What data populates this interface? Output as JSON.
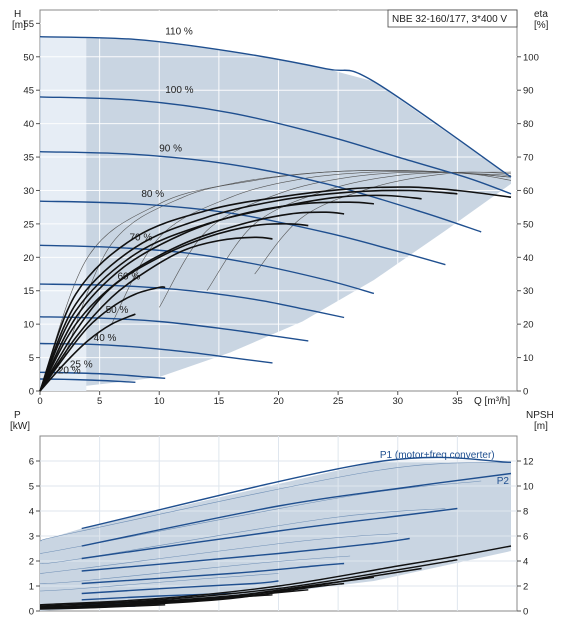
{
  "chart_data": [
    {
      "id": "head",
      "type": "line",
      "title": "NBE 32-160/177, 3*400 V",
      "xlabel": "Q [m³/h]",
      "ylabel_left": [
        "H",
        "[m]"
      ],
      "ylabel_right": [
        "eta",
        "[%]"
      ],
      "xlim": [
        0,
        40
      ],
      "ylim": [
        0,
        57
      ],
      "ylim_right": [
        0,
        114
      ],
      "x_ticks": [
        0,
        5,
        10,
        15,
        20,
        25,
        30,
        35
      ],
      "y_ticks": [
        0,
        5,
        10,
        15,
        20,
        25,
        30,
        35,
        40,
        45,
        50,
        55
      ],
      "y_right_ticks": [
        0,
        10,
        20,
        30,
        40,
        50,
        60,
        70,
        80,
        90,
        100
      ],
      "grid": true,
      "colors": {
        "area": "#c9d5e2",
        "curve": "#1f4f8f",
        "efficiency": "#111111",
        "grid": "#ffffff"
      },
      "envelope_polygon": [
        [
          0,
          0
        ],
        [
          0,
          53
        ],
        [
          8,
          52.6
        ],
        [
          16,
          50.8
        ],
        [
          24,
          48.2
        ],
        [
          28,
          46.3
        ],
        [
          39.5,
          32
        ],
        [
          39.5,
          31
        ],
        [
          34,
          24
        ],
        [
          28,
          16.6
        ],
        [
          22,
          10.4
        ],
        [
          16,
          5.8
        ],
        [
          10,
          2.1
        ],
        [
          7.5,
          1.5
        ]
      ],
      "speed_curves": [
        {
          "label": "110 %",
          "label_pos": [
            10.5,
            53.3
          ],
          "x": [
            0,
            8,
            16,
            24,
            28,
            39.5
          ],
          "y": [
            53,
            52.6,
            50.8,
            48.2,
            46.3,
            32
          ]
        },
        {
          "label": "100 %",
          "label_pos": [
            10.5,
            44.6
          ],
          "x": [
            0,
            8,
            16,
            24,
            30,
            36,
            39.5
          ],
          "y": [
            44,
            43.5,
            41.6,
            38.2,
            35.0,
            31.8,
            29.5
          ]
        },
        {
          "label": "90 %",
          "label_pos": [
            10,
            35.8
          ],
          "x": [
            0,
            8,
            16,
            24,
            32,
            37
          ],
          "y": [
            35.8,
            35.4,
            33.9,
            31.0,
            26.8,
            23.8
          ]
        },
        {
          "label": "80 %",
          "label_pos": [
            8.5,
            29.0
          ],
          "x": [
            0,
            8,
            16,
            24,
            30,
            34
          ],
          "y": [
            28.4,
            28.0,
            26.6,
            23.7,
            20.9,
            18.9
          ]
        },
        {
          "label": "70 %",
          "label_pos": [
            7.5,
            22.5
          ],
          "x": [
            0,
            6,
            12,
            18,
            24,
            28
          ],
          "y": [
            21.8,
            21.5,
            20.7,
            19.0,
            16.6,
            14.6
          ]
        },
        {
          "label": "60 %",
          "label_pos": [
            6.5,
            16.7
          ],
          "x": [
            0,
            6,
            12,
            18,
            22,
            25.5
          ],
          "y": [
            16.0,
            15.8,
            15.1,
            13.7,
            12.3,
            11.0
          ]
        },
        {
          "label": "50 %",
          "label_pos": [
            5.5,
            11.7
          ],
          "x": [
            0,
            5,
            10,
            15,
            19,
            22.5
          ],
          "y": [
            11.1,
            10.9,
            10.4,
            9.4,
            8.4,
            7.5
          ]
        },
        {
          "label": "40 %",
          "label_pos": [
            4.5,
            7.5
          ],
          "x": [
            0,
            4,
            8,
            12,
            16,
            19.5
          ],
          "y": [
            7.1,
            7.0,
            6.6,
            5.9,
            5.0,
            4.2
          ]
        },
        {
          "label": "25 %",
          "label_pos": [
            2.5,
            3.5
          ],
          "x": [
            0,
            3,
            6,
            9,
            10.5
          ],
          "y": [
            2.8,
            2.7,
            2.5,
            2.1,
            1.9
          ]
        },
        {
          "label": "20 %",
          "label_pos": [
            1.5,
            2.6
          ],
          "x": [
            0,
            2,
            4,
            6,
            8
          ],
          "y": [
            1.8,
            1.75,
            1.65,
            1.5,
            1.3
          ]
        }
      ],
      "efficiency_curves": [
        {
          "x": [
            0,
            3,
            8,
            14,
            20,
            26,
            31,
            35,
            39.5
          ],
          "eta": [
            0,
            29,
            46,
            54,
            58,
            60.5,
            61,
            60,
            58
          ]
        },
        {
          "x": [
            0,
            3,
            8,
            14,
            20,
            26,
            31,
            35
          ],
          "eta": [
            0,
            26,
            43,
            52,
            57,
            59.5,
            60,
            59
          ]
        },
        {
          "x": [
            0,
            3,
            8,
            14,
            20,
            25,
            29,
            32
          ],
          "eta": [
            0,
            24,
            41,
            50,
            55,
            58,
            58.5,
            57.5
          ]
        },
        {
          "x": [
            0,
            3,
            7,
            12,
            17,
            22,
            26,
            28
          ],
          "eta": [
            0,
            22,
            37,
            47,
            53,
            56,
            56.5,
            56
          ]
        },
        {
          "x": [
            0,
            3,
            7,
            12,
            17,
            21,
            24,
            25.5
          ],
          "eta": [
            0,
            20,
            34,
            44,
            50,
            53,
            53.5,
            53
          ]
        },
        {
          "x": [
            0,
            3,
            6,
            10,
            14,
            18,
            21,
            22.5
          ],
          "eta": [
            0,
            18,
            31,
            40,
            46,
            49.5,
            50,
            49.5
          ]
        },
        {
          "x": [
            0,
            3,
            6,
            9,
            12,
            15,
            18,
            19.5
          ],
          "eta": [
            0,
            16,
            28,
            36,
            42,
            45,
            46,
            45.5
          ]
        },
        {
          "x": [
            0,
            2,
            4,
            6,
            8,
            10,
            10.5
          ],
          "eta": [
            0,
            10,
            19,
            25,
            29,
            31,
            31
          ]
        },
        {
          "x": [
            0,
            2,
            4,
            6,
            8
          ],
          "eta": [
            0,
            8,
            15,
            20,
            23
          ]
        }
      ],
      "thin_efficiency_curves": [
        {
          "x": [
            0,
            4,
            10,
            16,
            22,
            28,
            34,
            39.5
          ],
          "eta": [
            0,
            40,
            56,
            62,
            65,
            66,
            65.5,
            64
          ]
        },
        {
          "x": [
            2,
            6,
            12,
            18,
            24,
            30,
            36,
            39.5
          ],
          "eta": [
            10,
            44,
            58,
            63,
            65.5,
            66,
            65,
            63
          ]
        },
        {
          "x": [
            6,
            10,
            16,
            22,
            28,
            34,
            39.5
          ],
          "eta": [
            20,
            46,
            58,
            63.5,
            65.5,
            65.5,
            64
          ]
        },
        {
          "x": [
            10,
            14,
            20,
            26,
            32,
            39.5
          ],
          "eta": [
            25,
            48,
            59,
            64,
            65.5,
            64.5
          ]
        },
        {
          "x": [
            14,
            18,
            24,
            30,
            36,
            39.5
          ],
          "eta": [
            30,
            50,
            60,
            64.5,
            65.5,
            65
          ]
        },
        {
          "x": [
            18,
            22,
            28,
            34,
            39.5
          ],
          "eta": [
            35,
            52,
            61,
            65,
            65.5
          ]
        }
      ]
    },
    {
      "id": "power",
      "type": "line",
      "ylabel_left": [
        "P",
        "[kW]"
      ],
      "ylabel_right": [
        "NPSH",
        "[m]"
      ],
      "xlim": [
        0,
        40
      ],
      "ylim": [
        0,
        7
      ],
      "ylim_right": [
        0,
        14
      ],
      "y_ticks": [
        0,
        1,
        2,
        3,
        4,
        5,
        6
      ],
      "y_right_ticks": [
        0,
        2,
        4,
        6,
        8,
        10,
        12
      ],
      "grid": true,
      "annotations": [
        {
          "text": "P1 (motor+freq.converter)",
          "at": [
            28.5,
            6.12
          ]
        },
        {
          "text": "P2",
          "at": [
            38.3,
            5.08
          ]
        }
      ],
      "envelope_polygon": [
        [
          0,
          2.8
        ],
        [
          3.5,
          3.3
        ],
        [
          28,
          5.95
        ],
        [
          39.5,
          5.95
        ],
        [
          39.5,
          2.4
        ],
        [
          28,
          1.2
        ],
        [
          16,
          0.5
        ],
        [
          8,
          0.2
        ],
        [
          0,
          0
        ]
      ],
      "power_curves": [
        {
          "name": "P1",
          "x": [
            3.5,
            28,
            39.5
          ],
          "y": [
            3.3,
            5.95,
            5.95
          ]
        },
        {
          "name": "P2",
          "x": [
            3.5,
            20,
            30,
            39.5
          ],
          "y": [
            2.6,
            4.2,
            4.9,
            5.5
          ]
        },
        {
          "x": [
            3.5,
            20,
            30,
            35
          ],
          "y": [
            2.1,
            3.2,
            3.8,
            4.1
          ]
        },
        {
          "x": [
            3.5,
            20,
            28,
            31
          ],
          "y": [
            1.6,
            2.3,
            2.7,
            2.9
          ]
        },
        {
          "x": [
            3.5,
            16,
            23,
            25.5
          ],
          "y": [
            1.1,
            1.5,
            1.8,
            1.9
          ]
        },
        {
          "x": [
            3.5,
            12,
            18,
            20
          ],
          "y": [
            0.7,
            0.95,
            1.1,
            1.2
          ]
        },
        {
          "x": [
            3.5,
            10,
            16
          ],
          "y": [
            0.45,
            0.6,
            0.7
          ]
        },
        {
          "x": [
            3.5,
            8,
            10.5
          ],
          "y": [
            0.25,
            0.3,
            0.35
          ]
        },
        {
          "x": [
            3.5,
            6,
            8
          ],
          "y": [
            0.15,
            0.18,
            0.2
          ]
        }
      ],
      "thin_power_curves": [
        {
          "x": [
            0,
            3.5,
            28,
            39.5
          ],
          "y": [
            2.8,
            3.2,
            5.6,
            5.95
          ]
        },
        {
          "x": [
            0,
            3.5,
            26,
            37
          ],
          "y": [
            2.3,
            2.6,
            4.6,
            5.2
          ]
        },
        {
          "x": [
            0,
            3.5,
            24,
            34
          ],
          "y": [
            1.9,
            2.1,
            3.7,
            4.1
          ]
        },
        {
          "x": [
            0,
            3.5,
            22,
            30
          ],
          "y": [
            1.5,
            1.7,
            2.8,
            3.1
          ]
        },
        {
          "x": [
            0,
            3.5,
            18,
            26
          ],
          "y": [
            1.1,
            1.2,
            1.9,
            2.2
          ]
        },
        {
          "x": [
            0,
            3.5,
            14,
            20
          ],
          "y": [
            0.8,
            0.9,
            1.3,
            1.5
          ]
        }
      ],
      "npsh_curves": [
        {
          "x": [
            0,
            10,
            20,
            30,
            35,
            39.5
          ],
          "npsh": [
            0.5,
            1.0,
            2.0,
            3.6,
            4.4,
            5.2
          ]
        },
        {
          "x": [
            0,
            10,
            20,
            30,
            35
          ],
          "npsh": [
            0.4,
            0.9,
            1.8,
            3.3,
            4.1
          ]
        },
        {
          "x": [
            0,
            10,
            20,
            28,
            32
          ],
          "npsh": [
            0.4,
            0.8,
            1.6,
            2.8,
            3.4
          ]
        },
        {
          "x": [
            0,
            8,
            16,
            24,
            28
          ],
          "npsh": [
            0.3,
            0.6,
            1.2,
            2.2,
            2.7
          ]
        },
        {
          "x": [
            0,
            8,
            16,
            22,
            25.5
          ],
          "npsh": [
            0.3,
            0.5,
            1.0,
            1.8,
            2.2
          ]
        },
        {
          "x": [
            0,
            6,
            12,
            18,
            22.5
          ],
          "npsh": [
            0.2,
            0.4,
            0.8,
            1.3,
            1.7
          ]
        },
        {
          "x": [
            0,
            5,
            10,
            15,
            19.5
          ],
          "npsh": [
            0.2,
            0.3,
            0.6,
            1.0,
            1.3
          ]
        },
        {
          "x": [
            0,
            4,
            8,
            10.5
          ],
          "npsh": [
            0.15,
            0.25,
            0.4,
            0.5
          ]
        }
      ]
    }
  ]
}
